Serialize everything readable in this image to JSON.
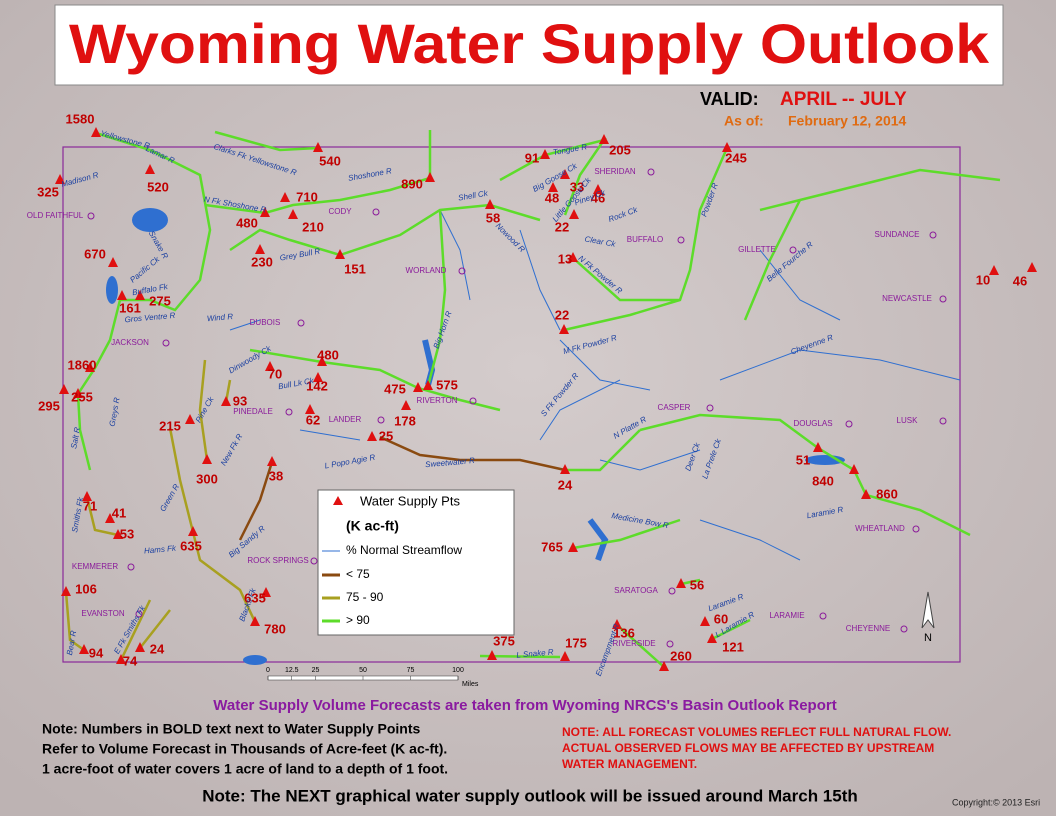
{
  "header": {
    "title": "Wyoming Water Supply Outlook",
    "valid_label": "VALID:",
    "valid_period": "APRIL -- JULY",
    "as_of_label": "As of:",
    "as_of_date": "February 12, 2014"
  },
  "legend": {
    "points_label": "Water Supply Pts",
    "units": "(K ac-ft)",
    "streamflow_label": "% Normal Streamflow",
    "classes": [
      "< 75",
      "75 - 90",
      "> 90"
    ]
  },
  "forecast_points": [
    1580,
    540,
    325,
    520,
    890,
    91,
    205,
    245,
    33,
    48,
    46,
    22,
    58,
    710,
    480,
    210,
    230,
    151,
    670,
    13,
    10,
    46,
    161,
    275,
    22,
    1860,
    480,
    70,
    142,
    475,
    575,
    295,
    255,
    93,
    62,
    178,
    215,
    25,
    300,
    38,
    24,
    51,
    840,
    860,
    71,
    41,
    53,
    635,
    765,
    106,
    56,
    635,
    60,
    780,
    136,
    121,
    375,
    175,
    94,
    74,
    24,
    260
  ],
  "cities": [
    "OLD FAITHFUL",
    "CODY",
    "SHERIDAN",
    "BUFFALO",
    "WORLAND",
    "GILLETTE",
    "SUNDANCE",
    "NEWCASTLE",
    "DUBOIS",
    "JACKSON",
    "PINEDALE",
    "LANDER",
    "RIVERTON",
    "CASPER",
    "DOUGLAS",
    "LUSK",
    "WHEATLAND",
    "ROCK SPRINGS",
    "KEMMERER",
    "EVANSTON",
    "SARATOGA",
    "LARAMIE",
    "CHEYENNE",
    "RIVERSIDE"
  ],
  "rivers": [
    "Yellowstone R",
    "Clarks Fk Yellowstone R",
    "Lamar R",
    "Madison R",
    "Shoshone R",
    "N Fk Shoshone R",
    "Snake R",
    "Buffalo Fk",
    "Pacific Ck",
    "Gros Ventre R",
    "Grey Bull R",
    "Wind R",
    "Big Horn R",
    "Shell Ck",
    "Nowood R",
    "Tongue R",
    "Big Goose Ck",
    "Little Goose Ck",
    "Piney Ck",
    "Rock Ck",
    "Clear Ck",
    "Powder R",
    "N Fk Powder R",
    "M Fk Powder R",
    "S Fk Powder R",
    "Belle Fourche R",
    "Cheyenne R",
    "N Platte R",
    "Sweetwater R",
    "L Popo Agie R",
    "Bull Lk Ck",
    "Dinwoody Ck",
    "Green R",
    "New Fk R",
    "Pine Ck",
    "Greys R",
    "Salt R",
    "Smiths Fk",
    "Hams Fk",
    "Big Sandy R",
    "Blacks Fk",
    "Bear R",
    "E Fk Smiths Fk",
    "Medicine Bow R",
    "Laramie R",
    "L Snake R",
    "Encampment R",
    "Deer Ck",
    "La Prele Ck",
    "L Laramie R",
    "Laramie R"
  ],
  "scale_bar": {
    "ticks": [
      0,
      12.5,
      25,
      50,
      75,
      100
    ],
    "unit": "Miles"
  },
  "north": "N",
  "footer": {
    "source": "Water Supply Volume Forecasts are taken from Wyoming NRCS's Basin Outlook Report",
    "note_lines": [
      "Note:  Numbers in BOLD text next to Water Supply Points",
      "Refer to Volume Forecast in Thousands of Acre-feet (K ac-ft).",
      "1 acre-foot of water covers 1 acre of land to a depth of 1 foot."
    ],
    "warning_lines": [
      "NOTE:  ALL FORECAST VOLUMES REFLECT FULL NATURAL FLOW.",
      "ACTUAL OBSERVED FLOWS MAY BE AFFECTED BY UPSTREAM",
      "WATER MANAGEMENT."
    ],
    "next_note": "Note:  The NEXT  graphical water supply outlook will be issued around March 15th",
    "copyright": "Copyright:© 2013 Esri"
  }
}
